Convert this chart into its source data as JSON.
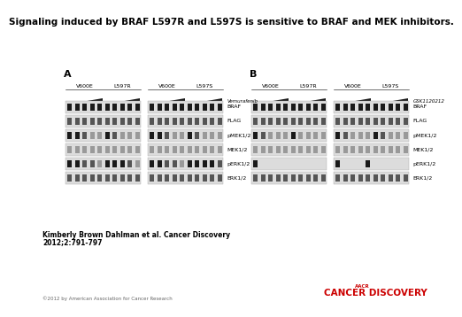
{
  "title": "Signaling induced by BRAF L597R and L597S is sensitive to BRAF and MEK inhibitors.",
  "title_fontsize": 7.5,
  "author_line1": "Kimberly Brown Dahlman et al. Cancer Discovery",
  "author_line2": "2012;2:791-797",
  "copyright": "©2012 by American Association for Cancer Research",
  "journal": "CANCER DISCOVERY",
  "aacr_text": "AACR",
  "panel_A_label": "A",
  "panel_B_label": "B",
  "panel_A_drug": "Vemurafenib",
  "panel_B_drug": "GSK1120212",
  "row_labels": [
    "BRAF",
    "FLAG",
    "pMEK1/2",
    "MEK1/2",
    "pERK1/2",
    "ERK1/2"
  ],
  "bg_color": "#ffffff",
  "panel_bg": "#dcdcdc",
  "panel_border": "#aaaaaa",
  "band_dark": "#1a1a1a",
  "band_medium": "#555555",
  "band_light": "#999999",
  "band_very_light": "#c8c8c8",
  "triangle_color": "#1a1a1a",
  "panel_A_bands": {
    "BRAF": [
      [
        3,
        3,
        3,
        3,
        3,
        3,
        3,
        3,
        3,
        3
      ],
      [
        3,
        3,
        3,
        3,
        3,
        3,
        3,
        3,
        3,
        3
      ]
    ],
    "FLAG": [
      [
        2,
        2,
        2,
        2,
        2,
        2,
        2,
        2,
        2,
        2
      ],
      [
        2,
        2,
        2,
        2,
        2,
        2,
        2,
        2,
        2,
        2
      ]
    ],
    "pMEK1/2": [
      [
        3,
        3,
        2,
        1,
        1,
        3,
        2,
        1,
        1,
        1
      ],
      [
        3,
        3,
        2,
        1,
        1,
        3,
        2,
        1,
        1,
        1
      ]
    ],
    "MEK1/2": [
      [
        1,
        1,
        1,
        1,
        1,
        1,
        1,
        1,
        1,
        1
      ],
      [
        1,
        1,
        1,
        1,
        1,
        1,
        1,
        1,
        1,
        1
      ]
    ],
    "pERK1/2": [
      [
        3,
        3,
        2,
        2,
        1,
        3,
        3,
        3,
        2,
        1
      ],
      [
        3,
        3,
        2,
        2,
        1,
        3,
        3,
        3,
        3,
        2
      ]
    ],
    "ERK1/2": [
      [
        2,
        2,
        2,
        2,
        2,
        2,
        2,
        2,
        2,
        2
      ],
      [
        2,
        2,
        2,
        2,
        2,
        2,
        2,
        2,
        2,
        2
      ]
    ]
  },
  "panel_B_bands": {
    "BRAF": [
      [
        3,
        3,
        3,
        3,
        3,
        3,
        3,
        3,
        3,
        3
      ],
      [
        3,
        3,
        3,
        3,
        3,
        3,
        3,
        3,
        3,
        3
      ]
    ],
    "FLAG": [
      [
        2,
        2,
        2,
        2,
        2,
        2,
        2,
        2,
        2,
        2
      ],
      [
        2,
        2,
        2,
        2,
        2,
        2,
        2,
        2,
        2,
        2
      ]
    ],
    "pMEK1/2": [
      [
        3,
        2,
        1,
        1,
        1,
        3,
        1,
        1,
        1,
        1
      ],
      [
        3,
        2,
        1,
        1,
        1,
        3,
        2,
        1,
        1,
        1
      ]
    ],
    "MEK1/2": [
      [
        1,
        1,
        1,
        1,
        1,
        1,
        1,
        1,
        1,
        1
      ],
      [
        1,
        1,
        1,
        1,
        1,
        1,
        1,
        1,
        1,
        1
      ]
    ],
    "pERK1/2": [
      [
        3,
        0,
        0,
        0,
        0,
        0,
        0,
        0,
        0,
        0
      ],
      [
        3,
        0,
        0,
        0,
        3,
        0,
        0,
        0,
        0,
        0
      ]
    ],
    "ERK1/2": [
      [
        2,
        2,
        2,
        2,
        2,
        2,
        2,
        2,
        2,
        2
      ],
      [
        2,
        2,
        2,
        2,
        2,
        2,
        2,
        2,
        2,
        2
      ]
    ]
  }
}
